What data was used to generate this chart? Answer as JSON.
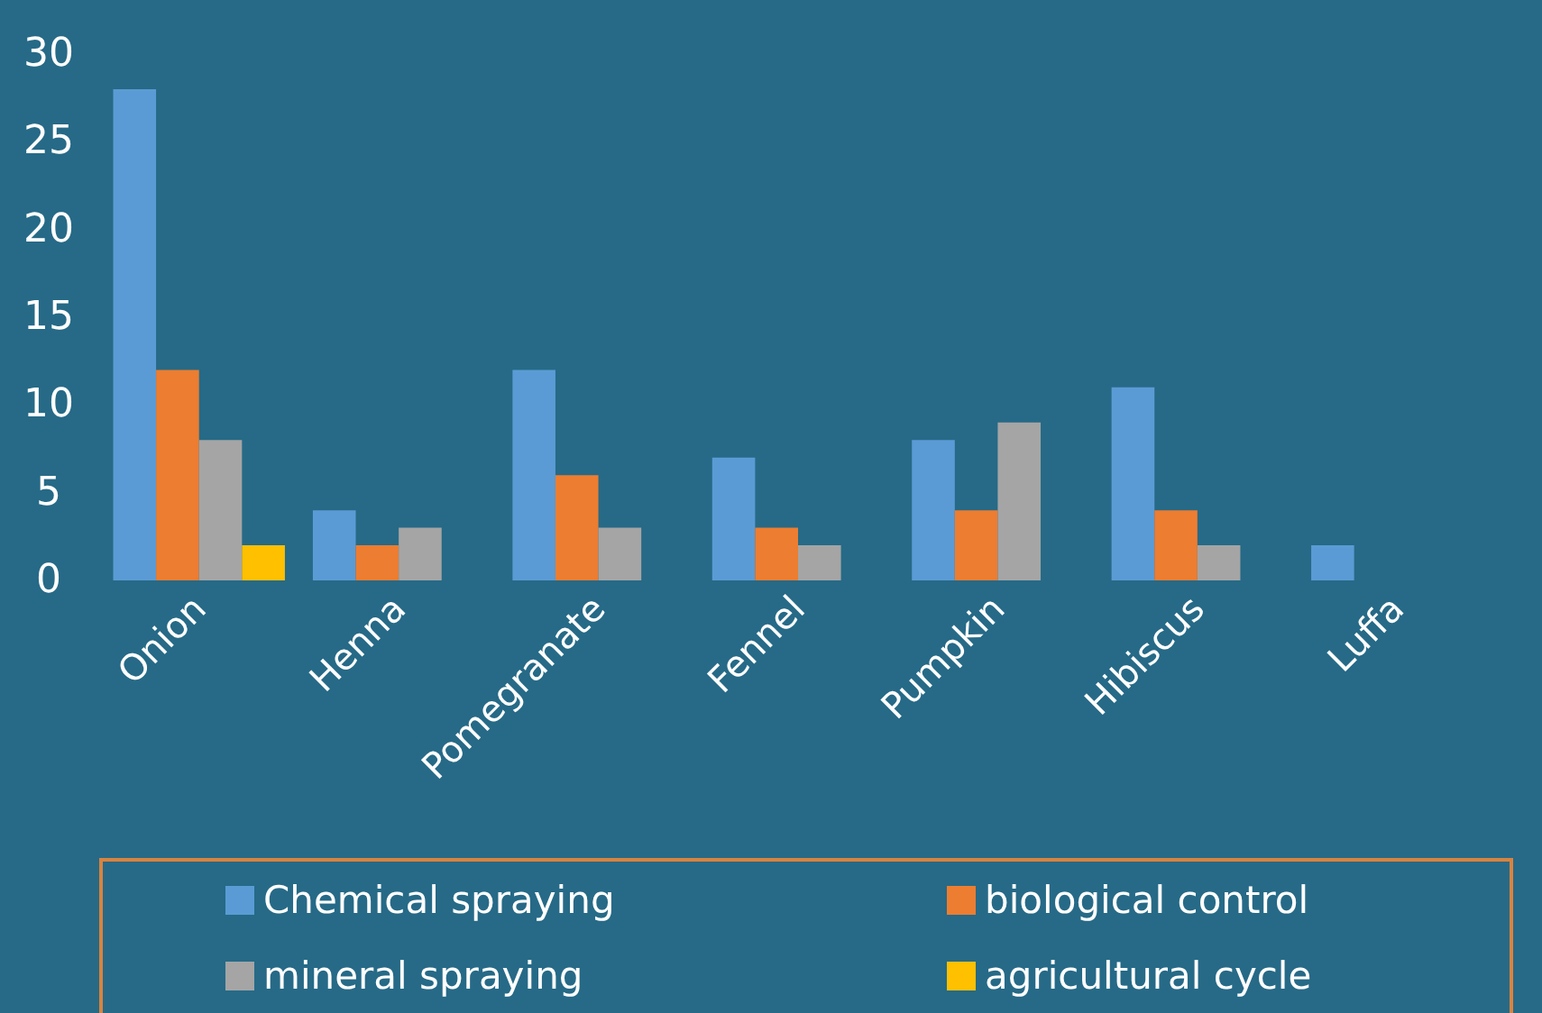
{
  "chart_data": {
    "type": "bar",
    "categories": [
      "Onion",
      "Henna",
      "Pomegranate",
      "Fennel",
      "Pumpkin",
      "Hibiscus",
      "Luffa"
    ],
    "series": [
      {
        "name": "Chemical spraying",
        "color": "#5b9bd5",
        "values": [
          28,
          4,
          12,
          7,
          8,
          11,
          2
        ]
      },
      {
        "name": "biological control",
        "color": "#ed7d31",
        "values": [
          12,
          2,
          6,
          3,
          4,
          4,
          null
        ]
      },
      {
        "name": "mineral spraying",
        "color": "#a5a5a5",
        "values": [
          8,
          3,
          3,
          2,
          9,
          2,
          null
        ]
      },
      {
        "name": "agricultural cycle",
        "color": "#ffc000",
        "values": [
          2,
          null,
          null,
          null,
          null,
          null,
          null
        ]
      }
    ],
    "ylim": [
      0,
      30
    ],
    "yticks": [
      0,
      5,
      10,
      15,
      20,
      25,
      30
    ],
    "grid": false,
    "legend": "bottom"
  }
}
